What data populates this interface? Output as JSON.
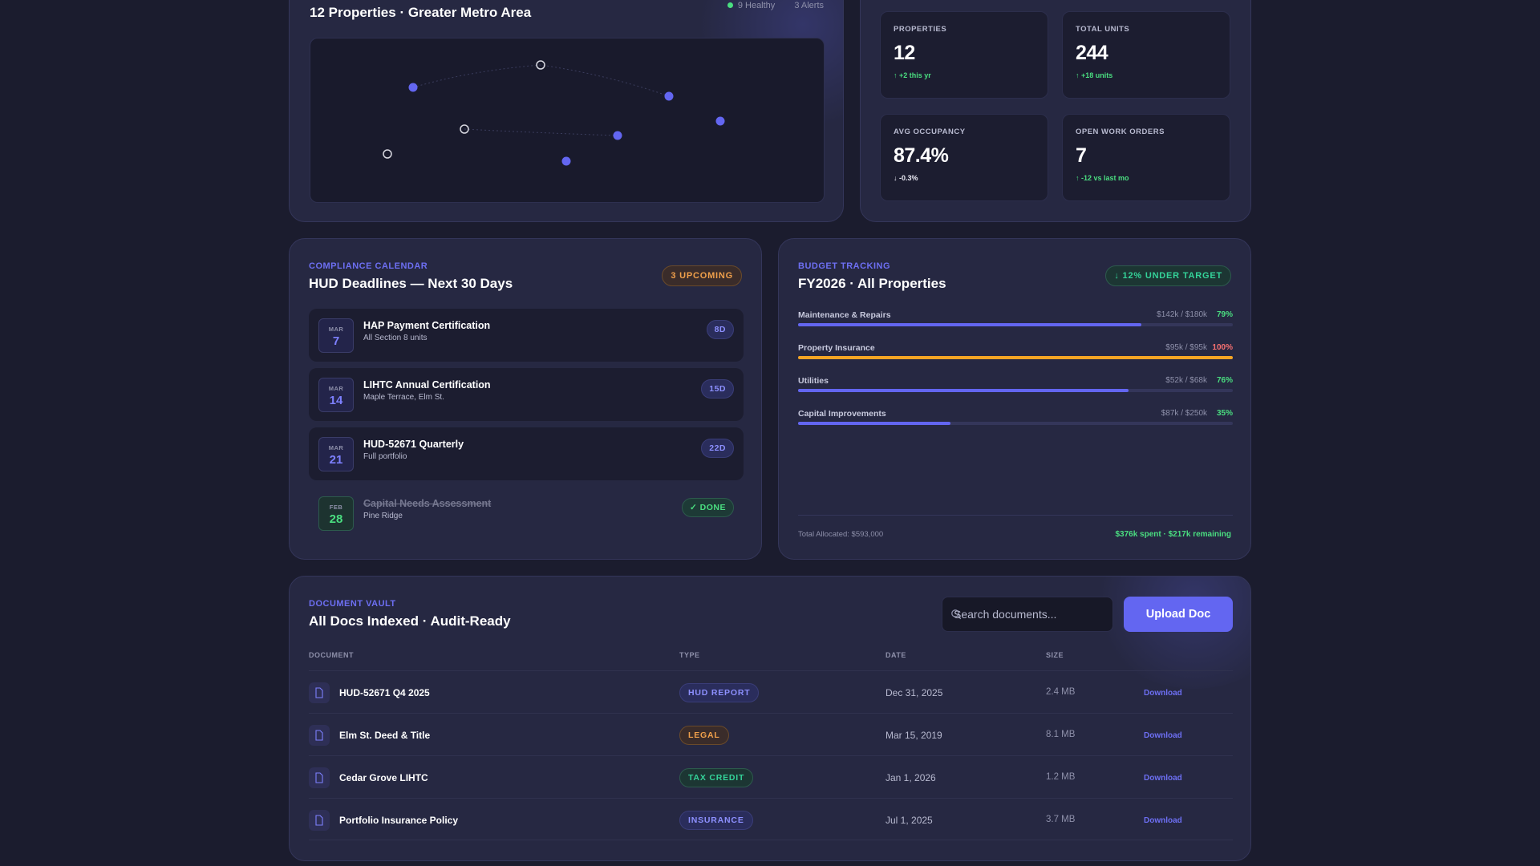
{
  "map": {
    "title": "12 Properties · Greater Metro Area",
    "legend": {
      "healthy": "9 Healthy",
      "alerts": "3 Alerts"
    },
    "healthy_color": "#4ade80",
    "pin_colors": {
      "filled": "#6366f1",
      "hollow": "#d8d8e0"
    }
  },
  "stats": [
    {
      "label": "Properties",
      "value": "12",
      "delta": "↑ +2 this yr",
      "trend": "up"
    },
    {
      "label": "Total Units",
      "value": "244",
      "delta": "↑ +18 units",
      "trend": "up"
    },
    {
      "label": "Avg Occupancy",
      "value": "87.4%",
      "delta": "↓ -0.3%",
      "trend": "down"
    },
    {
      "label": "Open Work Orders",
      "value": "7",
      "delta": "↑ -12 vs last mo",
      "trend": "up"
    }
  ],
  "compliance": {
    "eyebrow": "Compliance Calendar",
    "title": "HUD Deadlines — Next 30 Days",
    "badge": "3 Upcoming",
    "items": [
      {
        "month": "MAR",
        "day": "7",
        "title": "HAP Payment Certification",
        "subtitle": "All Section 8 units",
        "badge": "8D",
        "done": false
      },
      {
        "month": "MAR",
        "day": "14",
        "title": "LIHTC Annual Certification",
        "subtitle": "Maple Terrace, Elm St.",
        "badge": "15D",
        "done": false
      },
      {
        "month": "MAR",
        "day": "21",
        "title": "HUD-52671 Quarterly",
        "subtitle": "Full portfolio",
        "badge": "22D",
        "done": false
      },
      {
        "month": "FEB",
        "day": "28",
        "title": "Capital Needs Assessment",
        "subtitle": "Pine Ridge",
        "badge": "✓ DONE",
        "done": true
      }
    ]
  },
  "budget": {
    "eyebrow": "Budget Tracking",
    "title": "FY2026 · All Properties",
    "badge": "↓ 12% Under Target",
    "rows": [
      {
        "name": "Maintenance & Repairs",
        "amount": "$142k / $180k",
        "pct": "79%",
        "progress": 0.79,
        "color": "#6366f1",
        "pct_color": "#4ade80"
      },
      {
        "name": "Property Insurance",
        "amount": "$95k / $95k",
        "pct": "100%",
        "progress": 1.0,
        "color": "#f5a524",
        "pct_color": "#f87171"
      },
      {
        "name": "Utilities",
        "amount": "$52k / $68k",
        "pct": "76%",
        "progress": 0.76,
        "color": "#6366f1",
        "pct_color": "#4ade80"
      },
      {
        "name": "Capital Improvements",
        "amount": "$87k / $250k",
        "pct": "35%",
        "progress": 0.35,
        "color": "#6366f1",
        "pct_color": "#4ade80"
      }
    ],
    "total": "Total Allocated: $593,000",
    "summary": "$376k spent · $217k remaining"
  },
  "vault": {
    "eyebrow": "Document Vault",
    "title": "All Docs Indexed · Audit-Ready",
    "search_placeholder": "Search documents...",
    "upload_label": "Upload Doc",
    "columns": {
      "document": "Document",
      "type": "Type",
      "date": "Date",
      "size": "Size"
    },
    "docs": [
      {
        "name": "HUD-52671 Q4 2025",
        "type": "HUD Report",
        "type_class": "t-hud",
        "date": "Dec 31, 2025",
        "size": "2.4 MB",
        "action": "Download"
      },
      {
        "name": "Elm St. Deed & Title",
        "type": "Legal",
        "type_class": "t-legal",
        "date": "Mar 15, 2019",
        "size": "8.1 MB",
        "action": "Download"
      },
      {
        "name": "Cedar Grove LIHTC",
        "type": "Tax Credit",
        "type_class": "t-tax",
        "date": "Jan 1, 2026",
        "size": "1.2 MB",
        "action": "Download"
      },
      {
        "name": "Portfolio Insurance Policy",
        "type": "Insurance",
        "type_class": "t-ins",
        "date": "Jul 1, 2025",
        "size": "3.7 MB",
        "action": "Download"
      }
    ]
  }
}
